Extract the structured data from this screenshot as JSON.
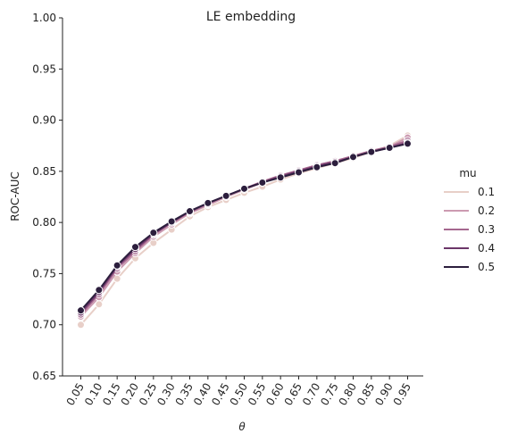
{
  "chart_data": {
    "type": "line",
    "title": "LE embedding",
    "xlabel": "θ",
    "ylabel": "ROC-AUC",
    "ylim": [
      0.65,
      1.0
    ],
    "yticks": [
      "0.65",
      "0.70",
      "0.75",
      "0.80",
      "0.85",
      "0.90",
      "0.95",
      "1.00"
    ],
    "x": [
      "0.05",
      "0.10",
      "0.15",
      "0.20",
      "0.25",
      "0.30",
      "0.35",
      "0.40",
      "0.45",
      "0.50",
      "0.55",
      "0.60",
      "0.65",
      "0.70",
      "0.75",
      "0.80",
      "0.85",
      "0.90",
      "0.95"
    ],
    "legend_title": "mu",
    "legend_position": "right",
    "series": [
      {
        "name": "0.1",
        "color": "#e8cfc8",
        "values": [
          0.7,
          0.72,
          0.745,
          0.765,
          0.78,
          0.793,
          0.806,
          0.815,
          0.822,
          0.829,
          0.835,
          0.842,
          0.848,
          0.853,
          0.858,
          0.863,
          0.869,
          0.875,
          0.885
        ]
      },
      {
        "name": "0.2",
        "color": "#cc9bb1",
        "values": [
          0.708,
          0.727,
          0.752,
          0.77,
          0.786,
          0.798,
          0.809,
          0.817,
          0.825,
          0.832,
          0.839,
          0.845,
          0.851,
          0.856,
          0.86,
          0.865,
          0.87,
          0.874,
          0.883
        ]
      },
      {
        "name": "0.3",
        "color": "#a5678f",
        "values": [
          0.71,
          0.73,
          0.755,
          0.772,
          0.788,
          0.8,
          0.81,
          0.818,
          0.826,
          0.833,
          0.84,
          0.846,
          0.851,
          0.856,
          0.86,
          0.865,
          0.87,
          0.874,
          0.88
        ]
      },
      {
        "name": "0.4",
        "color": "#6b3669",
        "values": [
          0.712,
          0.732,
          0.757,
          0.774,
          0.789,
          0.8,
          0.811,
          0.819,
          0.826,
          0.833,
          0.839,
          0.845,
          0.85,
          0.855,
          0.859,
          0.864,
          0.869,
          0.873,
          0.878
        ]
      },
      {
        "name": "0.5",
        "color": "#2c1e3d",
        "values": [
          0.714,
          0.734,
          0.758,
          0.776,
          0.79,
          0.801,
          0.811,
          0.819,
          0.826,
          0.833,
          0.839,
          0.844,
          0.849,
          0.854,
          0.858,
          0.864,
          0.869,
          0.873,
          0.877
        ]
      }
    ]
  }
}
